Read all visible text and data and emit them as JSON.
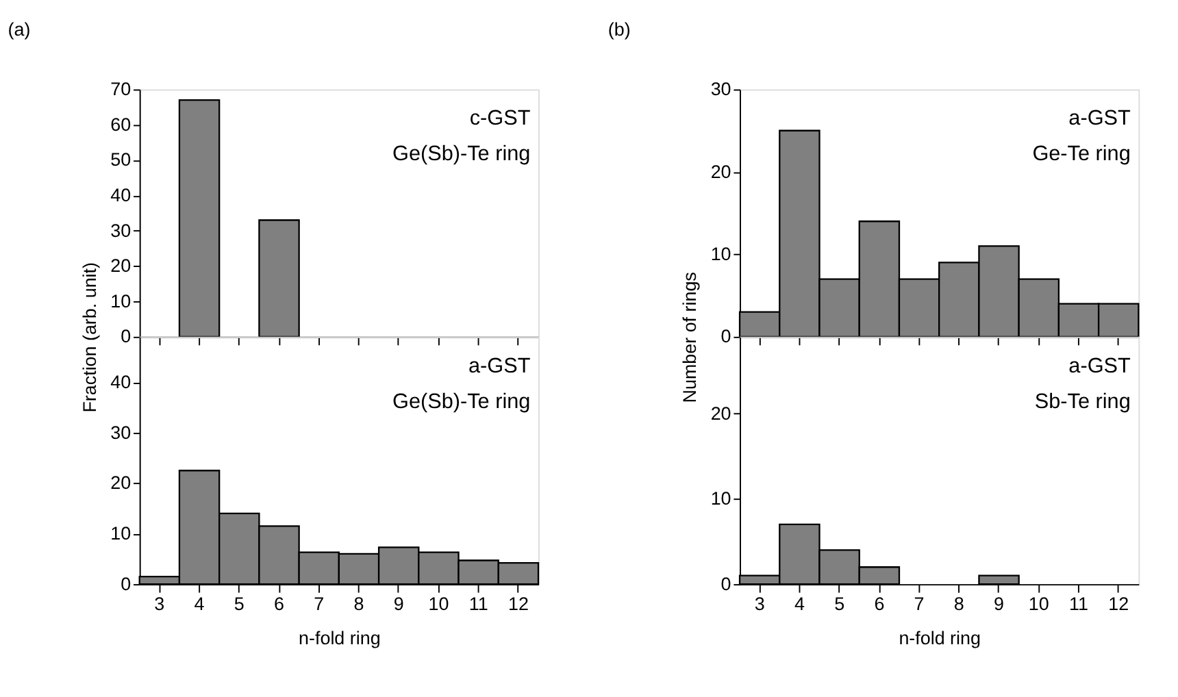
{
  "chart_data": [
    {
      "type": "bar",
      "title": "(a)",
      "ylabel": "Fraction (arb. unit)",
      "categories": [
        "3",
        "4",
        "5",
        "6",
        "7",
        "8",
        "9",
        "10",
        "11",
        "12"
      ],
      "values": [
        0,
        67,
        0,
        33,
        0,
        0,
        0,
        0,
        0,
        0
      ],
      "color": "#808080",
      "ylim": [
        0,
        70
      ],
      "yticks": [
        0,
        10,
        20,
        30,
        40,
        50,
        60,
        70
      ],
      "tick_labels": "y",
      "annotations": [
        "c-GST",
        "Ge(Sb)-Te ring"
      ]
    },
    {
      "type": "bar",
      "title": "(b)",
      "ylabel": "Number of rings",
      "categories": [
        "3",
        "4",
        "5",
        "6",
        "7",
        "8",
        "9",
        "10",
        "11",
        "12"
      ],
      "values": [
        3,
        25,
        7,
        14,
        7,
        9,
        11,
        7,
        4,
        4
      ],
      "color": "#808080",
      "ylim": [
        0,
        30
      ],
      "yticks": [
        0,
        10,
        20,
        30
      ],
      "tick_labels": "y",
      "annotations": [
        "a-GST",
        "Ge-Te ring"
      ]
    },
    {
      "type": "bar",
      "xlabel": "n-fold ring",
      "categories": [
        "3",
        "4",
        "5",
        "6",
        "7",
        "8",
        "9",
        "10",
        "11",
        "12"
      ],
      "values": [
        1.5,
        22.5,
        14,
        11.5,
        6.3,
        6,
        7.3,
        6.3,
        4.7,
        4.2
      ],
      "color": "#808080",
      "ylim": [
        0,
        49
      ],
      "yticks": [
        0,
        10,
        20,
        30,
        40
      ],
      "annotations": [
        "a-GST",
        "Ge(Sb)-Te ring"
      ]
    },
    {
      "type": "bar",
      "xlabel": "n-fold ring",
      "categories": [
        "3",
        "4",
        "5",
        "6",
        "7",
        "8",
        "9",
        "10",
        "11",
        "12"
      ],
      "values": [
        1,
        7,
        4,
        2,
        0,
        0,
        1,
        0,
        0,
        0
      ],
      "color": "#808080",
      "ylim": [
        0,
        29
      ],
      "yticks": [
        0,
        10,
        20
      ],
      "annotations": [
        "a-GST",
        "Sb-Te ring"
      ]
    }
  ]
}
